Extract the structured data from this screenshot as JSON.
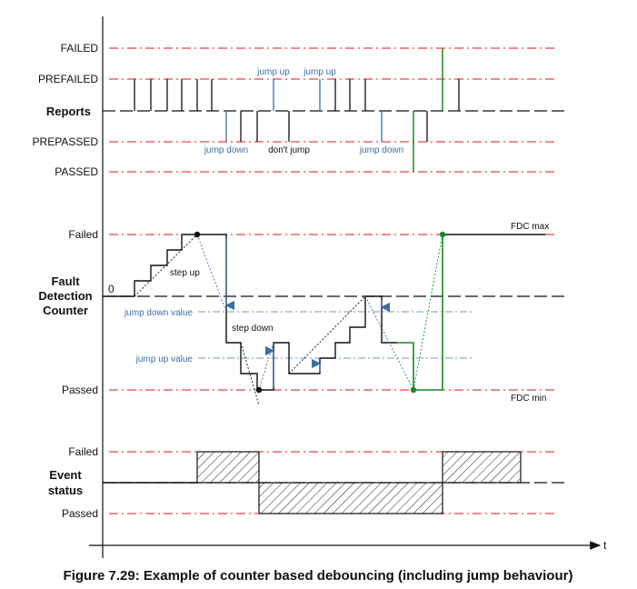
{
  "colors": {
    "red": "#e0141e",
    "black": "#111111",
    "blue": "#3c6ea6",
    "green": "#1a8a2a",
    "grey": "#7a8aa0"
  },
  "reports_section": {
    "levels": {
      "failed": "FAILED",
      "prefailed": "PREFAILED",
      "reports": "Reports",
      "prepassed": "PREPASSED",
      "passed": "PASSED"
    },
    "annotations": {
      "jump_up_1": "jump up",
      "jump_up_2": "jump up",
      "jump_down_1": "jump down",
      "dont_jump": "don't jump",
      "jump_down_2": "jump down"
    }
  },
  "fdc_section": {
    "levels": {
      "failed": "Failed",
      "passed": "Passed",
      "zero": "0",
      "title_line1": "Fault",
      "title_line2": "Detection",
      "title_line3": "Counter"
    },
    "annotations": {
      "step_up": "step up",
      "step_down": "step down",
      "jump_down_value": "jump down value",
      "jump_up_value": "jump up value",
      "fdc_max": "FDC max",
      "fdc_min": "FDC min"
    }
  },
  "event_section": {
    "levels": {
      "failed": "Failed",
      "passed": "Passed",
      "title_line1": "Event",
      "title_line2": "status"
    }
  },
  "axis": {
    "t_label": "t"
  },
  "caption": "Figure 7.29: Example of counter based debouncing (including jump behaviour)"
}
